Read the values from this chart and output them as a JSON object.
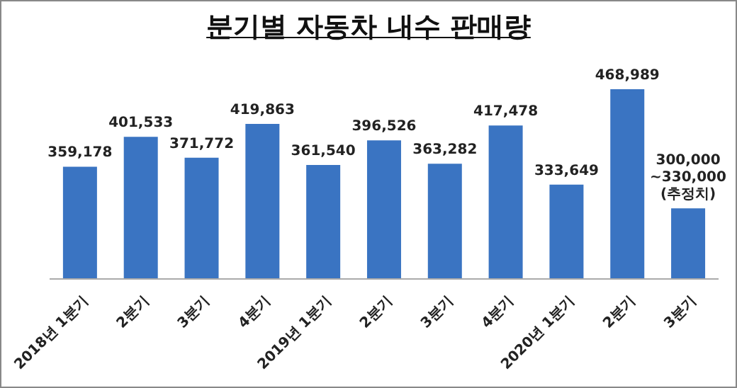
{
  "chart_data": {
    "type": "bar",
    "title": "분기별 자동차 내수 판매량",
    "categories": [
      "2018년 1분기",
      "2분기",
      "3분기",
      "4분기",
      "2019년 1분기",
      "2분기",
      "3분기",
      "4분기",
      "2020년 1분기",
      "2분기",
      "3분기"
    ],
    "values": [
      359178,
      401533,
      371772,
      419863,
      361540,
      396526,
      363282,
      417478,
      333649,
      468989,
      300000
    ],
    "value_labels": [
      "359,178",
      "401,533",
      "371,772",
      "419,863",
      "361,540",
      "396,526",
      "363,282",
      "417,478",
      "333,649",
      "468,989",
      "300,000\n~330,000\n(추정치)"
    ],
    "color": "#3a74c2",
    "ylim": [
      200000,
      468989
    ],
    "tick_labels": "x",
    "grid": false
  }
}
